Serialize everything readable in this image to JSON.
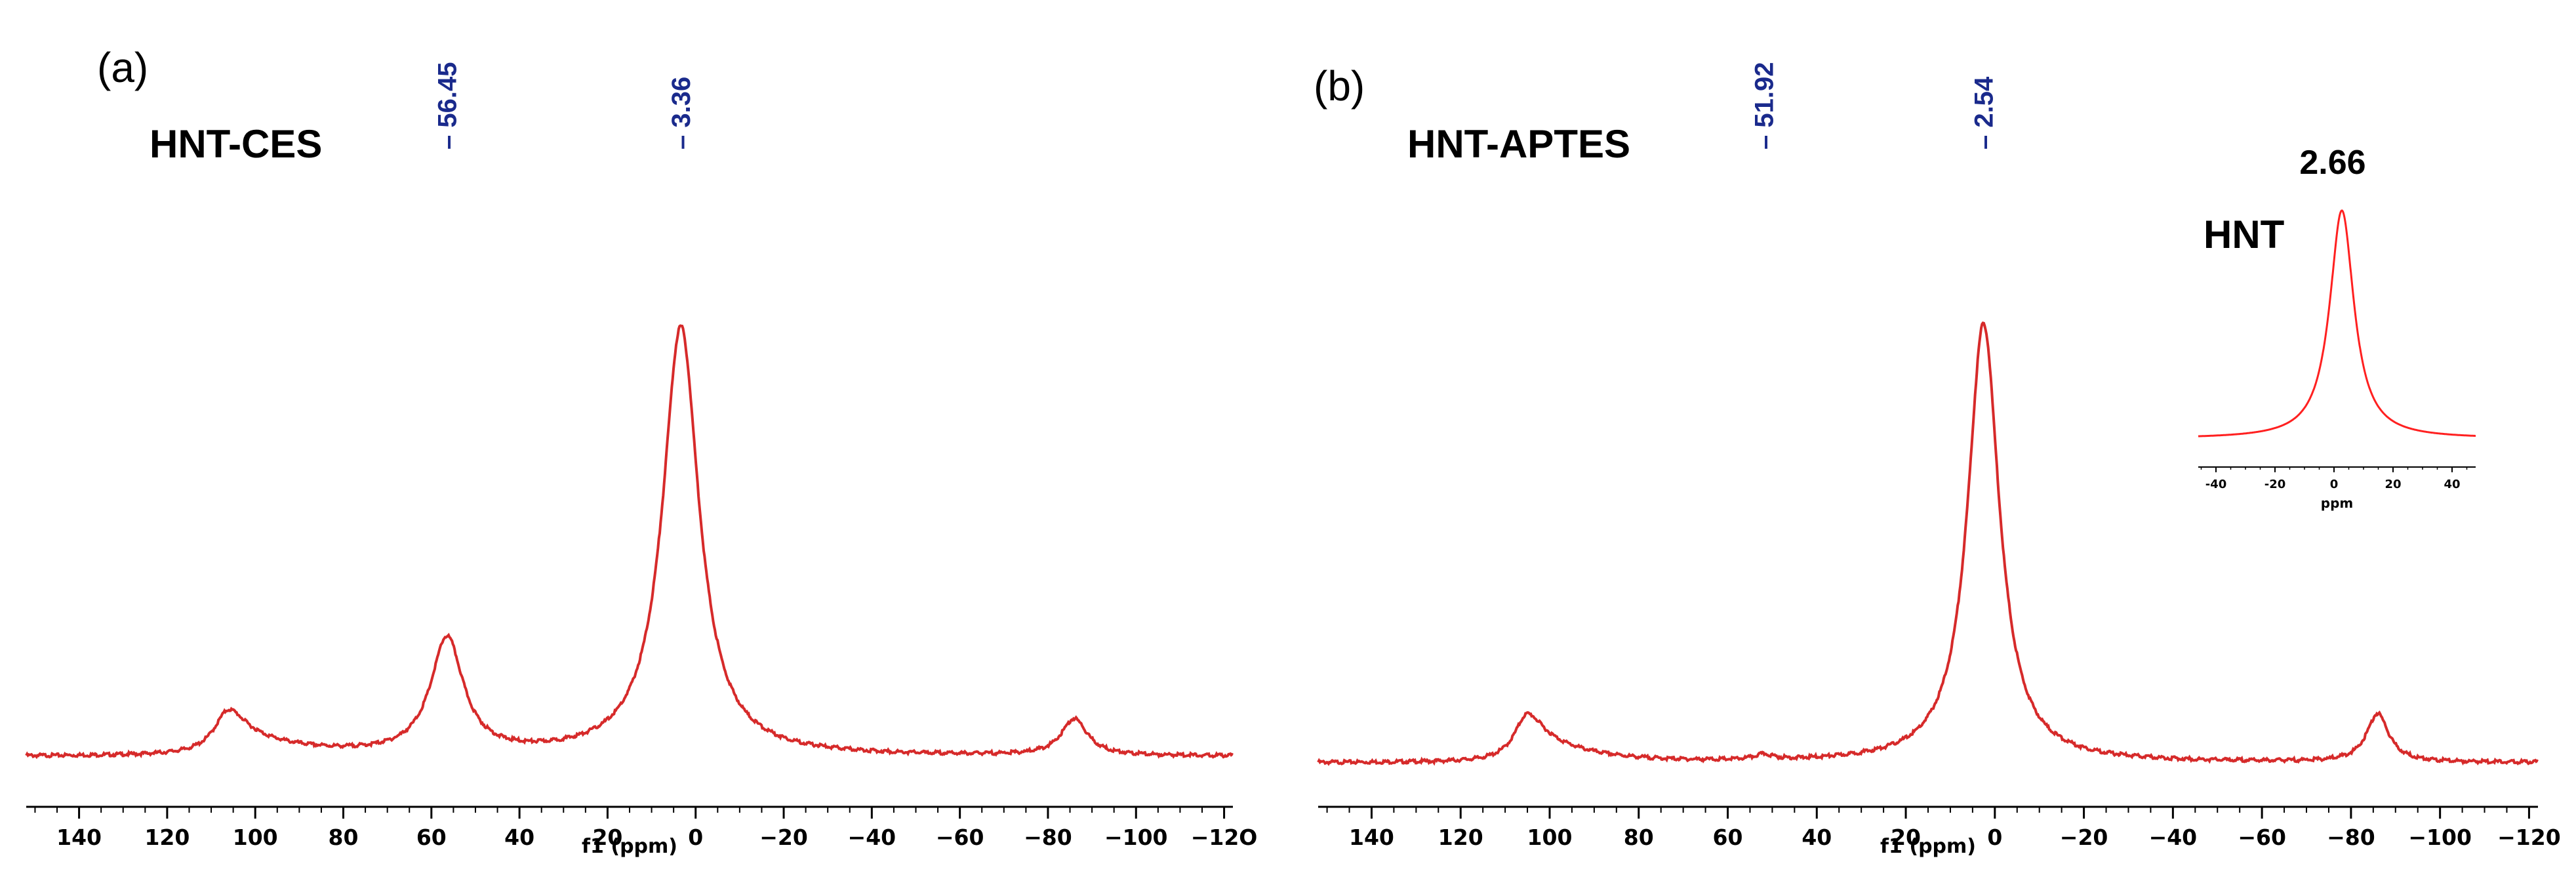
{
  "chart_data": [
    {
      "panel": "(a)",
      "sample": "HNT-CES",
      "type": "line",
      "xlabel": "f1 (ppm)",
      "xlim": [
        152,
        -122
      ],
      "x_reversed": true,
      "xticks": [
        140,
        120,
        100,
        80,
        60,
        40,
        20,
        0,
        -20,
        -40,
        -60,
        -80,
        -100,
        -120
      ],
      "xtick_labels": [
        "140",
        "120",
        "100",
        "80",
        "60",
        "40",
        "20",
        "0",
        "−20",
        "−40",
        "−60",
        "−80",
        "−100",
        "−12O"
      ],
      "peak_labels": [
        "56.45",
        "3.36"
      ],
      "peaks": [
        {
          "shift": 106,
          "intensity": 0.105,
          "width": 4,
          "tail": 0.06,
          "tail_width": 14
        },
        {
          "shift": 56.45,
          "intensity": 0.27,
          "width": 4.5
        },
        {
          "shift": 3.36,
          "intensity": 1.0,
          "width": 5.0
        },
        {
          "shift": -86,
          "intensity": 0.085,
          "width": 3.6
        }
      ],
      "baseline": 0.01,
      "color": "#d62a2a",
      "series": [
        {
          "values": []
        }
      ]
    },
    {
      "panel": "(b)",
      "sample": "HNT-APTES",
      "type": "line",
      "xlabel": "f1 (ppm)",
      "xlim": [
        152,
        -122
      ],
      "x_reversed": true,
      "xticks": [
        140,
        120,
        100,
        80,
        60,
        40,
        20,
        0,
        -20,
        -40,
        -60,
        -80,
        -100,
        -120
      ],
      "xtick_labels": [
        "140",
        "120",
        "100",
        "80",
        "60",
        "40",
        "20",
        "0",
        "−20",
        "−40",
        "−60",
        "−80",
        "−100",
        "−120"
      ],
      "peak_labels": [
        "51.92",
        "2.54"
      ],
      "peaks": [
        {
          "shift": 105,
          "intensity": 0.11,
          "width": 3.5,
          "tail": 0.07,
          "tail_width": 12
        },
        {
          "shift": 51.92,
          "intensity": 0.012,
          "width": 2.5
        },
        {
          "shift": 2.54,
          "intensity": 1.0,
          "width": 4.3
        },
        {
          "shift": -86,
          "intensity": 0.11,
          "width": 3.0
        }
      ],
      "baseline": 0.0,
      "color": "#d62a2a",
      "series": [
        {
          "values": []
        }
      ]
    },
    {
      "panel": "inset",
      "sample": "HNT",
      "type": "line",
      "xlabel": "ppm",
      "xlim": [
        -46,
        48
      ],
      "xticks": [
        -40,
        -20,
        0,
        20,
        40
      ],
      "xtick_labels": [
        "-40",
        "-20",
        "0",
        "20",
        "40"
      ],
      "peak_labels": [
        "2.66"
      ],
      "peaks": [
        {
          "shift": 2.66,
          "intensity": 1.0,
          "width": 5.0
        }
      ],
      "baseline": 0.0,
      "color": "#ff2020"
    }
  ]
}
